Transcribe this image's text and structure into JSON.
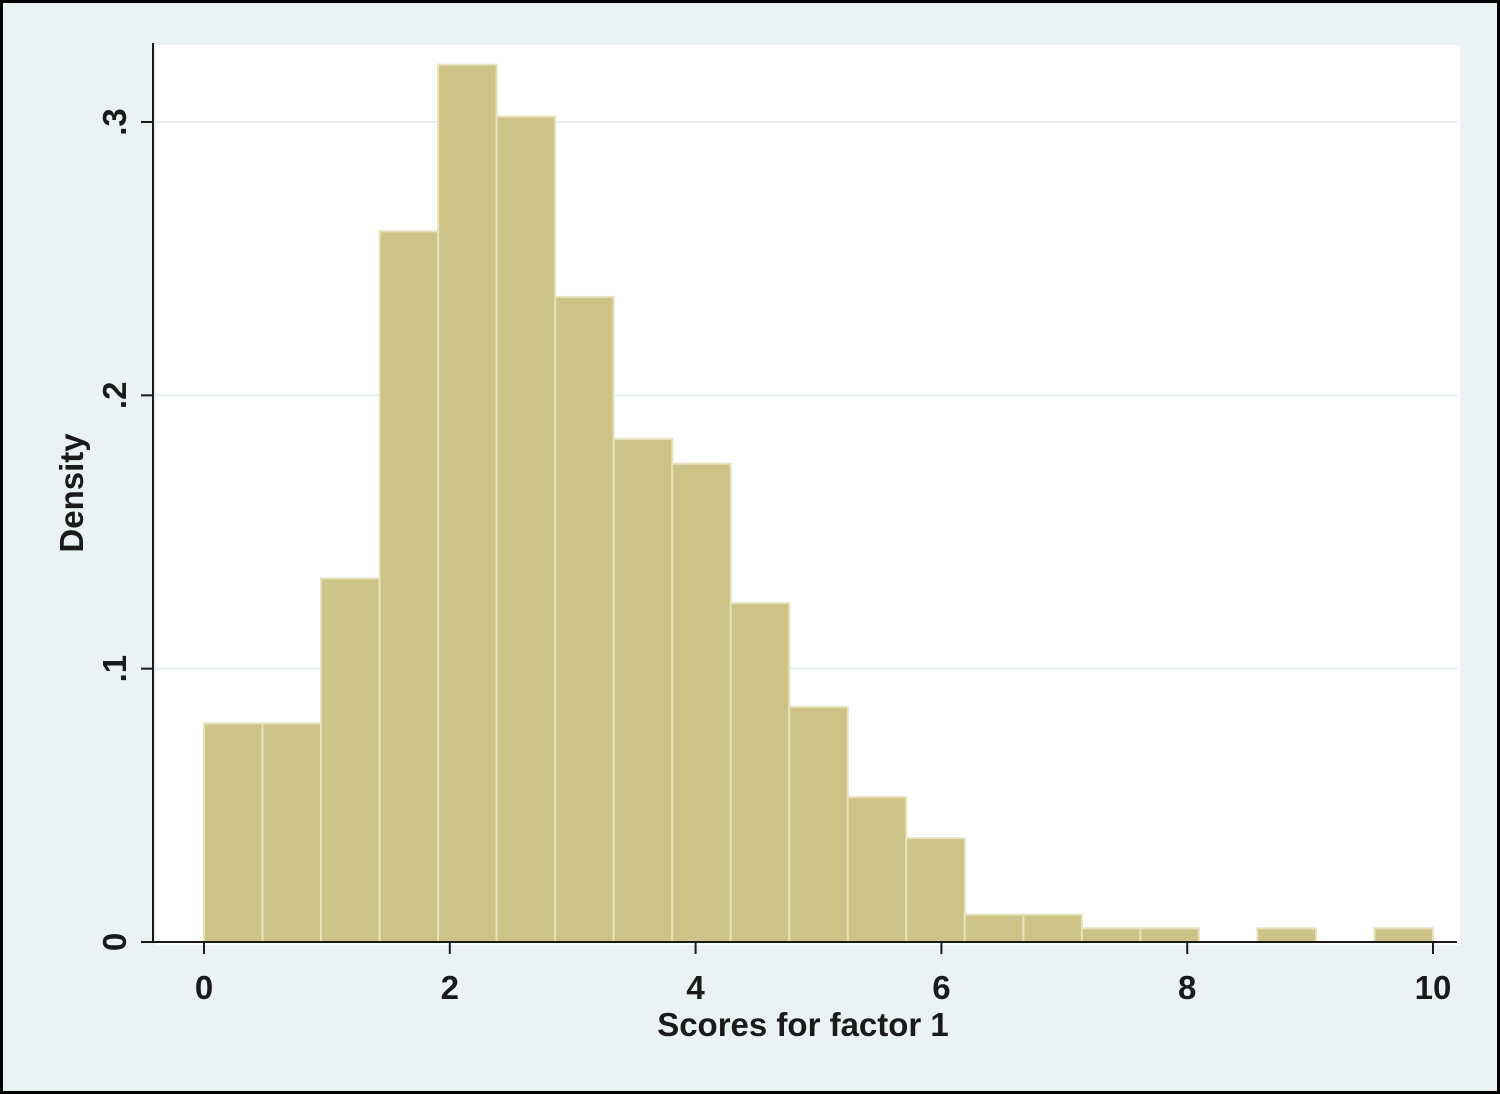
{
  "chart_data": {
    "type": "bar",
    "title": "",
    "xlabel": "Scores for factor 1",
    "ylabel": "Density",
    "xlim": [
      0,
      10
    ],
    "ylim": [
      0,
      0.33
    ],
    "grid": true,
    "x_ticks": [
      {
        "value": 0,
        "label": "0"
      },
      {
        "value": 2,
        "label": "2"
      },
      {
        "value": 4,
        "label": "4"
      },
      {
        "value": 6,
        "label": "6"
      },
      {
        "value": 8,
        "label": "8"
      },
      {
        "value": 10,
        "label": "10"
      }
    ],
    "y_ticks": [
      {
        "value": 0,
        "label": "0"
      },
      {
        "value": 0.1,
        "label": ".1"
      },
      {
        "value": 0.2,
        "label": ".2"
      },
      {
        "value": 0.3,
        "label": ".3"
      }
    ],
    "bin_edges": [
      0,
      0.476,
      0.952,
      1.429,
      1.905,
      2.381,
      2.857,
      3.333,
      3.81,
      4.286,
      4.762,
      5.238,
      5.714,
      6.19,
      6.667,
      7.143,
      7.619,
      8.095,
      8.571,
      9.048,
      9.524,
      10
    ],
    "values": [
      0.08,
      0.08,
      0.133,
      0.26,
      0.321,
      0.302,
      0.236,
      0.184,
      0.175,
      0.124,
      0.086,
      0.053,
      0.038,
      0.01,
      0.01,
      0.005,
      0.005,
      0,
      0.005,
      0,
      0.005
    ],
    "colors": {
      "bar_fill": "#cdc387",
      "bar_edge": "#e7e1bc",
      "grid": "#e8efef",
      "axis": "#1a1a1a",
      "plot_background": "#ffffff",
      "outer_background": "#eaf2f3"
    }
  }
}
